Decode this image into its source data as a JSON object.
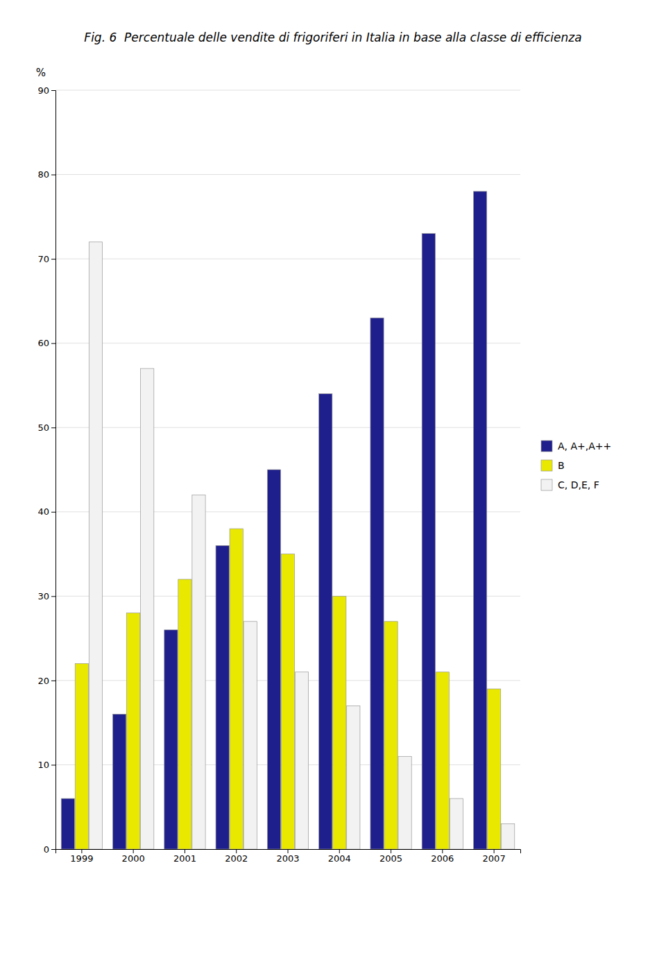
{
  "chart_data": {
    "type": "bar",
    "title": "Fig. 6  Percentuale delle vendite di frigoriferi in Italia in base alla classe di efficienza",
    "categories": [
      "1999",
      "2000",
      "2001",
      "2002",
      "2003",
      "2004",
      "2005",
      "2006",
      "2007"
    ],
    "series": [
      {
        "name": "A, A+,A++",
        "color": "#1e1e8c",
        "values": [
          6,
          16,
          26,
          36,
          45,
          54,
          63,
          73,
          78
        ]
      },
      {
        "name": "B",
        "color": "#e8e800",
        "values": [
          22,
          28,
          32,
          38,
          35,
          30,
          27,
          21,
          19
        ]
      },
      {
        "name": "C, D,E, F",
        "color": "#f2f2f2",
        "values": [
          72,
          57,
          42,
          27,
          21,
          17,
          11,
          6,
          3
        ]
      }
    ],
    "ylabel": "%",
    "ylim": [
      0,
      90
    ],
    "yticks": [
      0,
      10,
      20,
      30,
      40,
      50,
      60,
      70,
      80,
      90
    ],
    "grid": true,
    "legend": "right"
  }
}
